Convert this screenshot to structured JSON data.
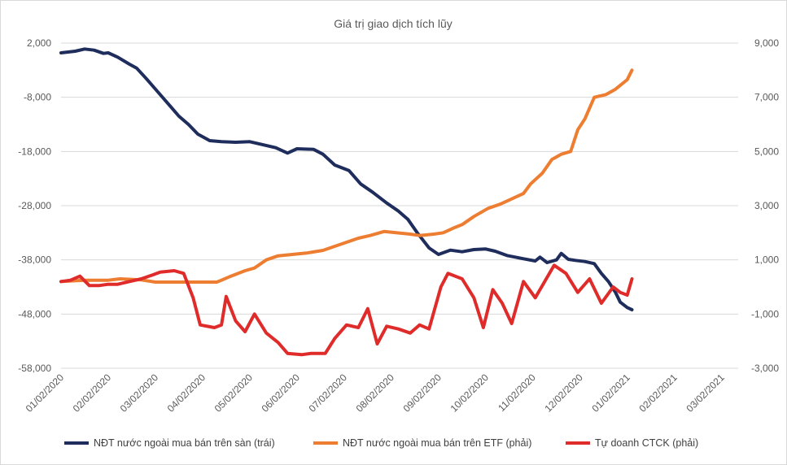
{
  "chart_data": {
    "type": "line",
    "title": "Giá trị giao dịch tích lũy",
    "x_tick_labels": [
      "01/02/2020",
      "02/02/2020",
      "03/02/2020",
      "04/02/2020",
      "05/02/2020",
      "06/02/2020",
      "07/02/2020",
      "08/02/2020",
      "09/02/2020",
      "10/02/2020",
      "11/02/2020",
      "12/02/2020",
      "01/02/2021",
      "02/02/2021",
      "03/02/2021"
    ],
    "y_left": {
      "min": -58000,
      "max": 2000,
      "tick_labels": [
        "2,000",
        "-8,000",
        "-18,000",
        "-28,000",
        "-38,000",
        "-48,000",
        "-58,000"
      ],
      "ticks": [
        2000,
        -8000,
        -18000,
        -28000,
        -38000,
        -48000,
        -58000
      ]
    },
    "y_right": {
      "min": -3000,
      "max": 9000,
      "tick_labels": [
        "9,000",
        "7,000",
        "5,000",
        "3,000",
        "1,000",
        "-1,000",
        "-3,000"
      ],
      "ticks": [
        9000,
        7000,
        5000,
        3000,
        1000,
        -1000,
        -3000
      ]
    },
    "grid": true,
    "legend_position": "bottom",
    "series": [
      {
        "name": "NĐT nước ngoài mua bán trên sàn (trái)",
        "axis": "left",
        "color": "#1f2d5c",
        "points": [
          [
            0,
            200
          ],
          [
            0.3,
            500
          ],
          [
            0.5,
            900
          ],
          [
            0.7,
            700
          ],
          [
            0.9,
            100
          ],
          [
            1.0,
            200
          ],
          [
            1.2,
            -600
          ],
          [
            1.45,
            -1900
          ],
          [
            1.6,
            -2600
          ],
          [
            1.8,
            -4500
          ],
          [
            2.05,
            -7000
          ],
          [
            2.3,
            -9500
          ],
          [
            2.5,
            -11500
          ],
          [
            2.7,
            -13000
          ],
          [
            2.9,
            -14800
          ],
          [
            3.05,
            -15500
          ],
          [
            3.15,
            -16000
          ],
          [
            3.4,
            -16200
          ],
          [
            3.7,
            -16300
          ],
          [
            4.0,
            -16200
          ],
          [
            4.3,
            -16800
          ],
          [
            4.55,
            -17300
          ],
          [
            4.8,
            -18300
          ],
          [
            5.0,
            -17500
          ],
          [
            5.35,
            -17600
          ],
          [
            5.55,
            -18500
          ],
          [
            5.8,
            -20500
          ],
          [
            6.1,
            -21500
          ],
          [
            6.35,
            -24000
          ],
          [
            6.6,
            -25500
          ],
          [
            6.9,
            -27500
          ],
          [
            7.15,
            -29000
          ],
          [
            7.35,
            -30500
          ],
          [
            7.55,
            -33000
          ],
          [
            7.8,
            -35800
          ],
          [
            8.0,
            -37000
          ],
          [
            8.25,
            -36200
          ],
          [
            8.5,
            -36500
          ],
          [
            8.75,
            -36100
          ],
          [
            9.0,
            -36000
          ],
          [
            9.2,
            -36400
          ],
          [
            9.45,
            -37200
          ],
          [
            9.8,
            -37800
          ],
          [
            10.05,
            -38200
          ],
          [
            10.15,
            -37500
          ],
          [
            10.3,
            -38500
          ],
          [
            10.5,
            -38000
          ],
          [
            10.6,
            -36800
          ],
          [
            10.75,
            -37900
          ],
          [
            10.9,
            -38100
          ],
          [
            11.1,
            -38300
          ],
          [
            11.3,
            -38700
          ],
          [
            11.45,
            -40500
          ],
          [
            11.6,
            -42000
          ],
          [
            11.75,
            -44000
          ],
          [
            11.85,
            -45800
          ],
          [
            12.0,
            -46800
          ],
          [
            12.1,
            -47200
          ]
        ]
      },
      {
        "name": "NĐT nước ngoài mua bán trên ETF (phải)",
        "axis": "right",
        "color": "#ed7d31",
        "points": [
          [
            0,
            200
          ],
          [
            0.5,
            250
          ],
          [
            1.0,
            250
          ],
          [
            1.25,
            300
          ],
          [
            1.7,
            260
          ],
          [
            2.0,
            180
          ],
          [
            2.4,
            180
          ],
          [
            2.7,
            180
          ],
          [
            3.0,
            180
          ],
          [
            3.3,
            180
          ],
          [
            3.4,
            250
          ],
          [
            3.6,
            400
          ],
          [
            3.9,
            600
          ],
          [
            4.1,
            700
          ],
          [
            4.35,
            1000
          ],
          [
            4.6,
            1150
          ],
          [
            4.9,
            1200
          ],
          [
            5.2,
            1250
          ],
          [
            5.55,
            1350
          ],
          [
            5.8,
            1500
          ],
          [
            6.05,
            1650
          ],
          [
            6.3,
            1800
          ],
          [
            6.55,
            1900
          ],
          [
            6.85,
            2050
          ],
          [
            7.1,
            2000
          ],
          [
            7.4,
            1950
          ],
          [
            7.6,
            1900
          ],
          [
            7.9,
            1950
          ],
          [
            8.1,
            2000
          ],
          [
            8.35,
            2200
          ],
          [
            8.5,
            2300
          ],
          [
            8.75,
            2600
          ],
          [
            9.05,
            2900
          ],
          [
            9.3,
            3050
          ],
          [
            9.55,
            3250
          ],
          [
            9.8,
            3450
          ],
          [
            9.95,
            3800
          ],
          [
            10.2,
            4200
          ],
          [
            10.4,
            4700
          ],
          [
            10.6,
            4900
          ],
          [
            10.8,
            5000
          ],
          [
            10.95,
            5800
          ],
          [
            11.1,
            6200
          ],
          [
            11.3,
            7000
          ],
          [
            11.55,
            7100
          ],
          [
            11.75,
            7300
          ],
          [
            12.0,
            7650
          ],
          [
            12.1,
            8000
          ]
        ]
      },
      {
        "name": "Tự doanh CTCK (phải)",
        "axis": "right",
        "color": "#e02b2b",
        "points": [
          [
            0,
            200
          ],
          [
            0.2,
            250
          ],
          [
            0.4,
            400
          ],
          [
            0.6,
            50
          ],
          [
            0.8,
            50
          ],
          [
            1.0,
            100
          ],
          [
            1.2,
            100
          ],
          [
            1.45,
            200
          ],
          [
            1.7,
            300
          ],
          [
            1.95,
            450
          ],
          [
            2.1,
            550
          ],
          [
            2.4,
            600
          ],
          [
            2.6,
            500
          ],
          [
            2.8,
            -400
          ],
          [
            2.95,
            -1400
          ],
          [
            3.25,
            -1500
          ],
          [
            3.4,
            -1400
          ],
          [
            3.5,
            -350
          ],
          [
            3.7,
            -1250
          ],
          [
            3.9,
            -1650
          ],
          [
            4.1,
            -1000
          ],
          [
            4.35,
            -1700
          ],
          [
            4.6,
            -2050
          ],
          [
            4.8,
            -2450
          ],
          [
            5.1,
            -2500
          ],
          [
            5.3,
            -2450
          ],
          [
            5.6,
            -2450
          ],
          [
            5.8,
            -1900
          ],
          [
            6.05,
            -1400
          ],
          [
            6.3,
            -1500
          ],
          [
            6.5,
            -800
          ],
          [
            6.7,
            -2100
          ],
          [
            6.9,
            -1450
          ],
          [
            7.15,
            -1550
          ],
          [
            7.4,
            -1700
          ],
          [
            7.6,
            -1400
          ],
          [
            7.8,
            -1550
          ],
          [
            8.05,
            0
          ],
          [
            8.2,
            500
          ],
          [
            8.5,
            300
          ],
          [
            8.75,
            -400
          ],
          [
            8.95,
            -1500
          ],
          [
            9.15,
            -100
          ],
          [
            9.35,
            -600
          ],
          [
            9.55,
            -1350
          ],
          [
            9.8,
            200
          ],
          [
            10.05,
            -400
          ],
          [
            10.25,
            200
          ],
          [
            10.45,
            800
          ],
          [
            10.7,
            500
          ],
          [
            10.95,
            -200
          ],
          [
            11.2,
            300
          ],
          [
            11.45,
            -600
          ],
          [
            11.7,
            0
          ],
          [
            11.85,
            -200
          ],
          [
            12.0,
            -300
          ],
          [
            12.1,
            300
          ]
        ]
      }
    ]
  }
}
